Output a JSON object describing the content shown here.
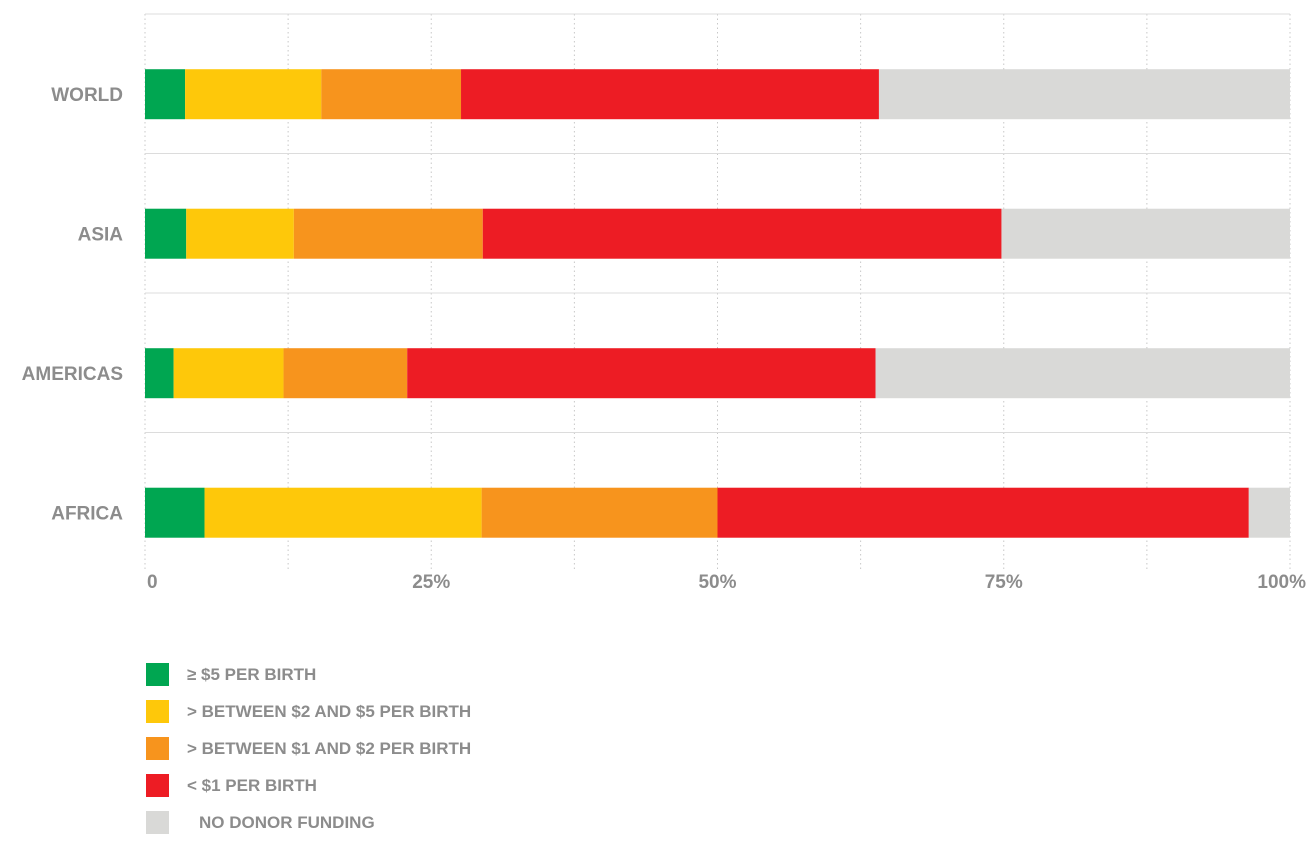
{
  "chart_data": {
    "type": "bar",
    "orientation": "horizontal",
    "stacked": true,
    "categories": [
      "WORLD",
      "ASIA",
      "AMERICAS",
      "AFRICA"
    ],
    "series": [
      {
        "name": "≥ $5 PER BIRTH",
        "color": "#00a651",
        "values": [
          3.5,
          3.6,
          2.5,
          5.2
        ]
      },
      {
        "name": "> BETWEEN $2 AND $5 PER BIRTH",
        "color": "#fec80a",
        "values": [
          11.9,
          9.4,
          9.6,
          24.2
        ]
      },
      {
        "name": "> BETWEEN $1 AND $2 PER BIRTH",
        "color": "#f7941d",
        "values": [
          12.2,
          16.5,
          10.8,
          20.6
        ]
      },
      {
        "name": "< $1 PER BIRTH",
        "color": "#ed1c24",
        "values": [
          36.5,
          45.3,
          40.9,
          46.4
        ]
      },
      {
        "name": "NO DONOR FUNDING",
        "color": "#d9d9d7",
        "values": [
          35.9,
          25.2,
          36.2,
          3.6
        ]
      }
    ],
    "x_ticks": [
      "0",
      "25%",
      "50%",
      "75%",
      "100%"
    ],
    "xlim": [
      0,
      100
    ],
    "grid": true,
    "legend_position": "bottom-left"
  }
}
